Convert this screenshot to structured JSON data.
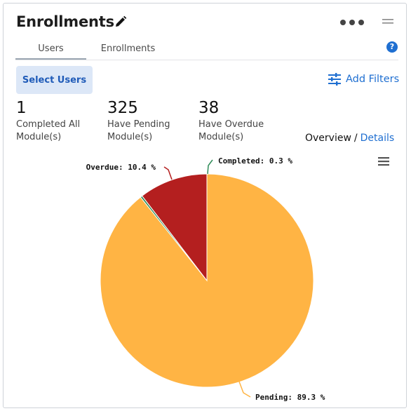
{
  "header": {
    "title": "Enrollments",
    "help_glyph": "?"
  },
  "tabs": [
    {
      "label": "Users",
      "active": true
    },
    {
      "label": "Enrollments",
      "active": false
    }
  ],
  "toolbar": {
    "select_users_label": "Select Users",
    "add_filters_label": "Add Filters"
  },
  "stats": [
    {
      "value": "1",
      "label": "Completed All Module(s)"
    },
    {
      "value": "325",
      "label": "Have Pending Module(s)"
    },
    {
      "value": "38",
      "label": "Have Overdue Module(s)"
    }
  ],
  "view_toggle": {
    "overview": "Overview",
    "separator": "/",
    "details": "Details"
  },
  "chart_data": {
    "type": "pie",
    "slices": [
      {
        "name": "Pending",
        "value": 89.3,
        "label": "Pending: 89.3 %",
        "color": "#ffb444"
      },
      {
        "name": "Completed",
        "value": 0.3,
        "label": "Completed: 0.3 %",
        "color": "#2e8b57"
      },
      {
        "name": "Overdue",
        "value": 10.4,
        "label": "Overdue: 10.4 %",
        "color": "#b41f1f"
      }
    ]
  },
  "colors": {
    "accent": "#1f6fd1",
    "button_bg": "#dce7f7"
  }
}
